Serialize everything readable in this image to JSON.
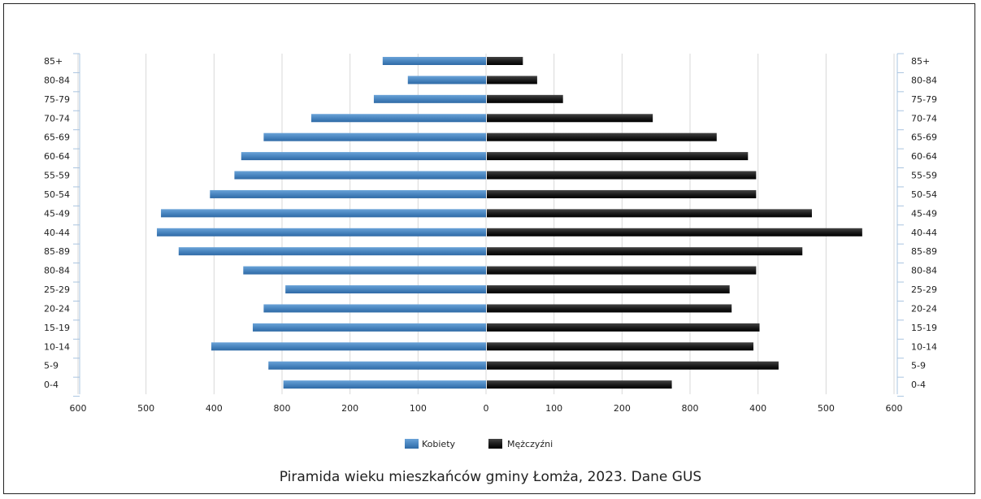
{
  "caption": "Piramida wieku mieszkańców gminy Łomża, 2023. Dane GUS",
  "colors": {
    "female": "#4a86c0",
    "male": "#1c1c1c",
    "grid": "#d8d8d8",
    "axis_bracket": "#a9c4e0"
  },
  "chart_data": {
    "type": "bar",
    "orientation": "horizontal",
    "title": "",
    "categories": [
      "85+",
      "80-84",
      "75-79",
      "70-74",
      "65-69",
      "60-64",
      "55-59",
      "50-54",
      "45-49",
      "40-44",
      "85-89",
      "80-84",
      "25-29",
      "20-24",
      "15-19",
      "10-14",
      "5-9",
      "0-4"
    ],
    "x_ticks_left": [
      "600",
      "500",
      "400",
      "800",
      "200",
      "100",
      "0"
    ],
    "x_ticks_right": [
      "100",
      "200",
      "800",
      "400",
      "500",
      "600"
    ],
    "xlim": [
      -600,
      600
    ],
    "grid": true,
    "legend_position": "bottom",
    "series": [
      {
        "name": "Kobiety",
        "side": "left",
        "values": [
          152,
          115,
          165,
          257,
          327,
          360,
          370,
          406,
          478,
          484,
          452,
          357,
          295,
          327,
          343,
          404,
          320,
          298
        ]
      },
      {
        "name": "Mężczyźni",
        "side": "right",
        "values": [
          53,
          74,
          112,
          244,
          338,
          384,
          396,
          396,
          478,
          552,
          464,
          396,
          357,
          360,
          401,
          392,
          429,
          272
        ]
      }
    ]
  }
}
